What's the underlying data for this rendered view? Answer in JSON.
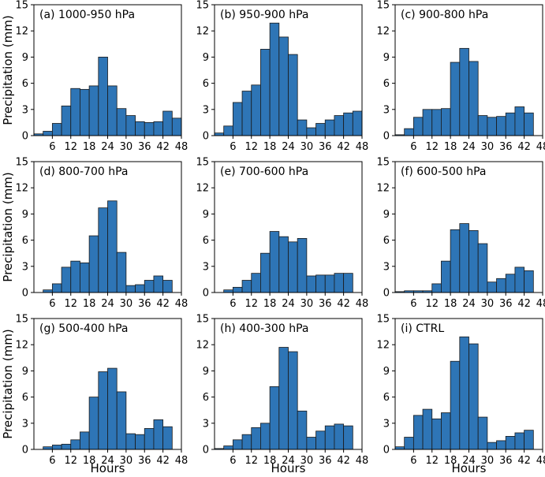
{
  "chart_data": [
    {
      "type": "bar",
      "title": "(a) 1000-950 hPa",
      "x": [
        1.5,
        4.5,
        7.5,
        10.5,
        13.5,
        16.5,
        19.5,
        22.5,
        25.5,
        28.5,
        31.5,
        34.5,
        37.5,
        40.5,
        43.5,
        46.5
      ],
      "values": [
        0.2,
        0.5,
        1.4,
        3.4,
        5.4,
        5.3,
        5.7,
        9.0,
        5.7,
        3.1,
        2.3,
        1.6,
        1.5,
        1.6,
        2.8,
        2.0
      ],
      "xlabel": "",
      "ylabel": "Precipitation (mm)",
      "xlim": [
        0,
        48
      ],
      "ylim": [
        0,
        15
      ],
      "xticks": [
        6,
        12,
        18,
        24,
        30,
        36,
        42,
        48
      ],
      "yticks": [
        0,
        3,
        6,
        9,
        12,
        15
      ]
    },
    {
      "type": "bar",
      "title": "(b) 950-900 hPa",
      "x": [
        1.5,
        4.5,
        7.5,
        10.5,
        13.5,
        16.5,
        19.5,
        22.5,
        25.5,
        28.5,
        31.5,
        34.5,
        37.5,
        40.5,
        43.5,
        46.5
      ],
      "values": [
        0.3,
        1.1,
        3.8,
        5.1,
        5.8,
        9.9,
        12.9,
        11.3,
        9.3,
        1.8,
        0.9,
        1.4,
        1.8,
        2.3,
        2.6,
        2.8
      ],
      "xlabel": "",
      "ylabel": "",
      "xlim": [
        0,
        48
      ],
      "ylim": [
        0,
        15
      ],
      "xticks": [
        6,
        12,
        18,
        24,
        30,
        36,
        42,
        48
      ],
      "yticks": [
        0,
        3,
        6,
        9,
        12,
        15
      ]
    },
    {
      "type": "bar",
      "title": "(c) 900-800 hPa",
      "x": [
        1.5,
        4.5,
        7.5,
        10.5,
        13.5,
        16.5,
        19.5,
        22.5,
        25.5,
        28.5,
        31.5,
        34.5,
        37.5,
        40.5,
        43.5,
        46.5
      ],
      "values": [
        0.1,
        0.8,
        2.1,
        3.0,
        3.0,
        3.1,
        8.4,
        10.0,
        8.5,
        2.3,
        2.1,
        2.2,
        2.6,
        3.3,
        2.6,
        0
      ],
      "xlabel": "",
      "ylabel": "",
      "xlim": [
        0,
        48
      ],
      "ylim": [
        0,
        15
      ],
      "xticks": [
        6,
        12,
        18,
        24,
        30,
        36,
        42,
        48
      ],
      "yticks": [
        0,
        3,
        6,
        9,
        12,
        15
      ]
    },
    {
      "type": "bar",
      "title": "(d) 800-700 hPa",
      "x": [
        1.5,
        4.5,
        7.5,
        10.5,
        13.5,
        16.5,
        19.5,
        22.5,
        25.5,
        28.5,
        31.5,
        34.5,
        37.5,
        40.5,
        43.5,
        46.5
      ],
      "values": [
        0,
        0.3,
        1.0,
        2.9,
        3.6,
        3.4,
        6.5,
        9.7,
        10.5,
        4.6,
        0.8,
        0.9,
        1.4,
        1.9,
        1.4,
        0
      ],
      "xlabel": "",
      "ylabel": "Precipitation (mm)",
      "xlim": [
        0,
        48
      ],
      "ylim": [
        0,
        15
      ],
      "xticks": [
        6,
        12,
        18,
        24,
        30,
        36,
        42,
        48
      ],
      "yticks": [
        0,
        3,
        6,
        9,
        12,
        15
      ]
    },
    {
      "type": "bar",
      "title": "(e) 700-600 hPa",
      "x": [
        1.5,
        4.5,
        7.5,
        10.5,
        13.5,
        16.5,
        19.5,
        22.5,
        25.5,
        28.5,
        31.5,
        34.5,
        37.5,
        40.5,
        43.5,
        46.5
      ],
      "values": [
        0,
        0.3,
        0.6,
        1.4,
        2.2,
        4.5,
        7.0,
        6.4,
        5.8,
        6.2,
        1.9,
        2.0,
        2.0,
        2.2,
        2.2,
        0
      ],
      "xlabel": "",
      "ylabel": "",
      "xlim": [
        0,
        48
      ],
      "ylim": [
        0,
        15
      ],
      "xticks": [
        6,
        12,
        18,
        24,
        30,
        36,
        42,
        48
      ],
      "yticks": [
        0,
        3,
        6,
        9,
        12,
        15
      ]
    },
    {
      "type": "bar",
      "title": "(f) 600-500 hPa",
      "x": [
        1.5,
        4.5,
        7.5,
        10.5,
        13.5,
        16.5,
        19.5,
        22.5,
        25.5,
        28.5,
        31.5,
        34.5,
        37.5,
        40.5,
        43.5,
        46.5
      ],
      "values": [
        0.1,
        0.2,
        0.2,
        0.2,
        1.0,
        3.6,
        7.2,
        7.9,
        7.1,
        5.6,
        1.2,
        1.6,
        2.1,
        2.9,
        2.5,
        0
      ],
      "xlabel": "",
      "ylabel": "",
      "xlim": [
        0,
        48
      ],
      "ylim": [
        0,
        15
      ],
      "xticks": [
        6,
        12,
        18,
        24,
        30,
        36,
        42,
        48
      ],
      "yticks": [
        0,
        3,
        6,
        9,
        12,
        15
      ]
    },
    {
      "type": "bar",
      "title": "(g) 500-400 hPa",
      "x": [
        1.5,
        4.5,
        7.5,
        10.5,
        13.5,
        16.5,
        19.5,
        22.5,
        25.5,
        28.5,
        31.5,
        34.5,
        37.5,
        40.5,
        43.5,
        46.5
      ],
      "values": [
        0,
        0.3,
        0.5,
        0.6,
        1.1,
        2.0,
        6.0,
        8.9,
        9.3,
        6.6,
        1.8,
        1.7,
        2.4,
        3.4,
        2.6,
        0
      ],
      "xlabel": "Hours",
      "ylabel": "Precipitation (mm)",
      "xlim": [
        0,
        48
      ],
      "ylim": [
        0,
        15
      ],
      "xticks": [
        6,
        12,
        18,
        24,
        30,
        36,
        42,
        48
      ],
      "yticks": [
        0,
        3,
        6,
        9,
        12,
        15
      ]
    },
    {
      "type": "bar",
      "title": "(h) 400-300 hPa",
      "x": [
        1.5,
        4.5,
        7.5,
        10.5,
        13.5,
        16.5,
        19.5,
        22.5,
        25.5,
        28.5,
        31.5,
        34.5,
        37.5,
        40.5,
        43.5,
        46.5
      ],
      "values": [
        0.1,
        0.4,
        1.1,
        1.7,
        2.5,
        3.0,
        7.2,
        11.7,
        11.2,
        4.4,
        1.4,
        2.1,
        2.7,
        2.9,
        2.7,
        0
      ],
      "xlabel": "Hours",
      "ylabel": "",
      "xlim": [
        0,
        48
      ],
      "ylim": [
        0,
        15
      ],
      "xticks": [
        6,
        12,
        18,
        24,
        30,
        36,
        42,
        48
      ],
      "yticks": [
        0,
        3,
        6,
        9,
        12,
        15
      ]
    },
    {
      "type": "bar",
      "title": "(i) CTRL",
      "x": [
        1.5,
        4.5,
        7.5,
        10.5,
        13.5,
        16.5,
        19.5,
        22.5,
        25.5,
        28.5,
        31.5,
        34.5,
        37.5,
        40.5,
        43.5,
        46.5
      ],
      "values": [
        0.3,
        1.4,
        3.9,
        4.6,
        3.5,
        4.2,
        10.1,
        12.9,
        12.1,
        3.7,
        0.8,
        1.0,
        1.5,
        1.9,
        2.2,
        0
      ],
      "xlabel": "Hours",
      "ylabel": "",
      "xlim": [
        0,
        48
      ],
      "ylim": [
        0,
        15
      ],
      "xticks": [
        6,
        12,
        18,
        24,
        30,
        36,
        42,
        48
      ],
      "yticks": [
        0,
        3,
        6,
        9,
        12,
        15
      ]
    }
  ]
}
